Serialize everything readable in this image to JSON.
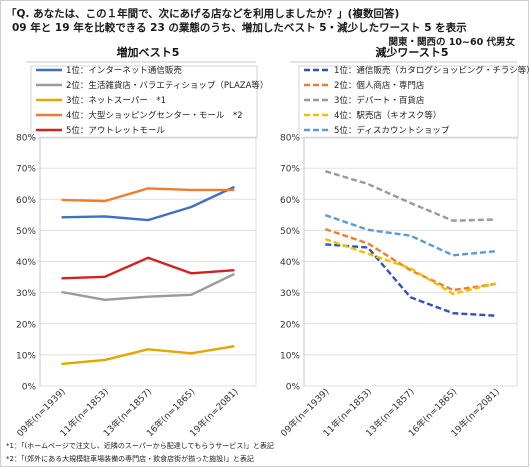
{
  "header": {
    "question": "「Q. あなたは、この１年間で、次にあげる店などを利用しましたか？」(複数回答)",
    "subtitle": "09 年と 19 年を比較できる 23 の業態のうち、増加したベスト 5・減少したワースト 5 を表示",
    "region": "関東・関西の 10~60 代男女"
  },
  "footnotes": [
    "*1：「(ホームページで注文し、近隣のスーパーから配達してもらうサービス)」と表記",
    "*2：「(郊外にある大規模駐車場装備の専門店・飲食店街が揃った施設)」と表記"
  ],
  "chart_data": [
    {
      "type": "line",
      "title": "増加ベスト5",
      "categories": [
        "09年(n=1939)",
        "11年(n=1853)",
        "13年(n=1857)",
        "16年(n=1865)",
        "19年(n=2081)"
      ],
      "y_ticks": [
        "0%",
        "10%",
        "20%",
        "30%",
        "40%",
        "50%",
        "60%",
        "70%",
        "80%"
      ],
      "ylim": [
        0,
        80
      ],
      "grid": true,
      "legend": "top",
      "series": [
        {
          "name": "1位：インターネット通信販売",
          "color": "#3e6fc8",
          "dashed": false,
          "values": [
            54.2,
            54.5,
            53.3,
            57.5,
            64.0
          ]
        },
        {
          "name": "2位：生活雑貨店・バラエティショップ（PLAZA等）",
          "color": "#9a9a9a",
          "dashed": false,
          "values": [
            30.2,
            27.7,
            28.7,
            29.3,
            36.0
          ]
        },
        {
          "name": "3位：ネットスーパー　*1",
          "color": "#e0a800",
          "dashed": false,
          "values": [
            7.1,
            8.4,
            11.8,
            10.5,
            12.8
          ]
        },
        {
          "name": "4位：大型ショッピングセンター・モール　*2",
          "color": "#ed7d31",
          "dashed": false,
          "values": [
            59.8,
            59.4,
            63.5,
            63.0,
            63.0
          ]
        },
        {
          "name": "5位：アウトレットモール",
          "color": "#d42020",
          "dashed": false,
          "values": [
            34.6,
            35.1,
            41.2,
            36.2,
            37.2
          ]
        }
      ]
    },
    {
      "type": "line",
      "title": "減少ワースト5",
      "categories": [
        "09年(n=1939)",
        "11年(n=1853)",
        "13年(n=1857)",
        "16年(n=1865)",
        "19年(n=2081)"
      ],
      "y_ticks": [
        "0%",
        "10%",
        "20%",
        "30%",
        "40%",
        "50%",
        "60%",
        "70%",
        "80%"
      ],
      "ylim": [
        0,
        80
      ],
      "grid": true,
      "legend": "top",
      "series": [
        {
          "name": "1位：通信販売（カタログショッピング・チラシ等）",
          "color": "#2e55b5",
          "dashed": true,
          "values": [
            45.5,
            44.5,
            28.5,
            23.4,
            22.6
          ]
        },
        {
          "name": "2位：個人商店・専門店",
          "color": "#ed7d31",
          "dashed": true,
          "values": [
            50.4,
            45.8,
            37.2,
            30.8,
            32.8
          ]
        },
        {
          "name": "3位：デパート・百貨店",
          "color": "#9a9a9a",
          "dashed": true,
          "values": [
            69.0,
            64.9,
            58.8,
            53.1,
            53.5
          ]
        },
        {
          "name": "4位：駅売店（キオスク等）",
          "color": "#f0c000",
          "dashed": true,
          "values": [
            47.2,
            42.5,
            37.8,
            29.6,
            32.9
          ]
        },
        {
          "name": "5位：ディスカウントショップ",
          "color": "#5b9bd5",
          "dashed": true,
          "values": [
            54.9,
            50.2,
            48.3,
            42.0,
            43.3
          ]
        }
      ]
    }
  ]
}
